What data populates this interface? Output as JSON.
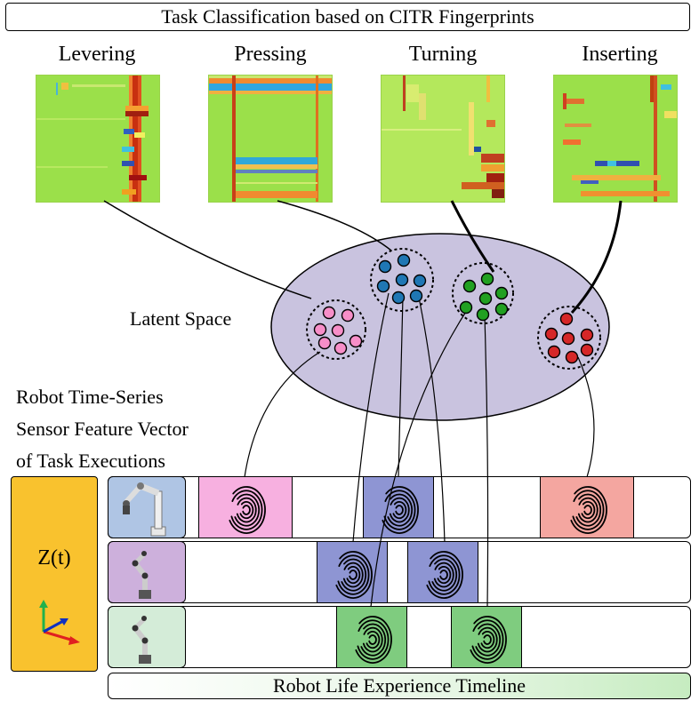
{
  "title": "Task Classification based on CITR Fingerprints",
  "tasks": [
    {
      "label": "Levering"
    },
    {
      "label": "Pressing"
    },
    {
      "label": "Turning"
    },
    {
      "label": "Inserting"
    }
  ],
  "latent_space_label": "Latent Space",
  "robot_description": [
    "Robot Time-Series",
    "Sensor Feature Vector",
    "of Task Executions"
  ],
  "z_label": "Z(t)",
  "timeline_label": "Robot Life Experience Timeline",
  "colors": {
    "levering": "#f78ec8",
    "pressing": "#1f77b4",
    "turning": "#21a021",
    "inserting": "#d62728",
    "ellipse_fill": "#c9c3df",
    "z_box": "#f9c22e",
    "heatmap_bg": "#9be04a"
  },
  "icons": [
    "fingerprint-icon",
    "robot-arm-icon",
    "axes-icon"
  ]
}
